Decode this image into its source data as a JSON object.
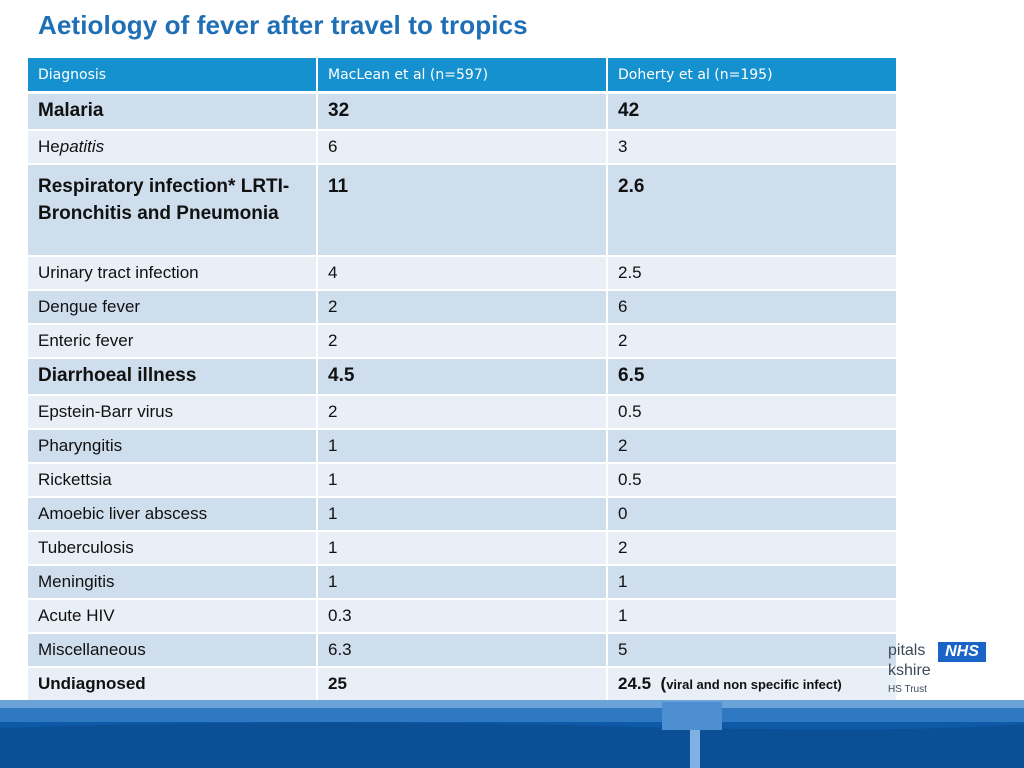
{
  "title": "Aetiology of fever after travel to tropics",
  "table": {
    "headers": [
      "Diagnosis",
      "MacLean et al  (n=597)",
      "Doherty et al (n=195)"
    ],
    "rows": [
      {
        "diagnosis": "Malaria",
        "maclean": "32",
        "doherty": "42"
      },
      {
        "diagnosis_prefix": "He",
        "diagnosis_italic": "patitis",
        "maclean": "6",
        "doherty": "3"
      },
      {
        "diagnosis": "Respiratory infection* LRTI- Bronchitis and Pneumonia",
        "maclean": "11",
        "doherty": "2.6"
      },
      {
        "diagnosis": "Urinary tract infection",
        "maclean": "4",
        "doherty": "2.5"
      },
      {
        "diagnosis": "Dengue fever",
        "maclean": "2",
        "doherty": "6"
      },
      {
        "diagnosis": "Enteric fever",
        "maclean": "2",
        "doherty": "2"
      },
      {
        "diagnosis": "Diarrhoeal illness",
        "maclean": "4.5",
        "doherty": "6.5"
      },
      {
        "diagnosis": "Epstein-Barr virus",
        "maclean": "2",
        "doherty": "0.5"
      },
      {
        "diagnosis": "Pharyngitis",
        "maclean": "1",
        "doherty": "2"
      },
      {
        "diagnosis": "Rickettsia",
        "maclean": "1",
        "doherty": "0.5"
      },
      {
        "diagnosis": "Amoebic liver abscess",
        "maclean": "1",
        "doherty": "0"
      },
      {
        "diagnosis": "Tuberculosis",
        "maclean": "1",
        "doherty": "2"
      },
      {
        "diagnosis": "Meningitis",
        "maclean": "1",
        "doherty": "1"
      },
      {
        "diagnosis": "Acute HIV",
        "maclean": "0.3",
        "doherty": "1"
      },
      {
        "diagnosis": "Miscellaneous",
        "maclean": "6.3",
        "doherty": "5"
      },
      {
        "diagnosis": "Undiagnosed",
        "maclean": "25",
        "doherty": "24.5  (",
        "doherty_note": "viral and non specific infect)"
      }
    ]
  },
  "logo": {
    "line1": "pitals",
    "badge": "NHS",
    "line2": "kshire",
    "line3": "HS Trust"
  },
  "colors": {
    "title": "#1f6fb6",
    "header": "#1591cf",
    "row_dark": "#cfdeed",
    "row_light": "#e9eff7",
    "footer": "#0e5aa7"
  }
}
